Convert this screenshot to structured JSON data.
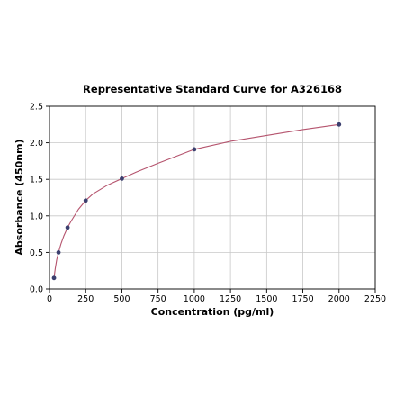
{
  "chart_data": {
    "type": "scatter",
    "title": "Representative Standard Curve for A326168",
    "xlabel": "Concentration (pg/ml)",
    "ylabel": "Absorbance (450nm)",
    "xlim": [
      0,
      2250
    ],
    "ylim": [
      0,
      2.5
    ],
    "x_ticks": [
      0,
      250,
      500,
      750,
      1000,
      1250,
      1500,
      1750,
      2000,
      2250
    ],
    "x_tick_labels": [
      "0",
      "250",
      "500",
      "750",
      "1000",
      "1250",
      "1500",
      "1750",
      "2000",
      "2250"
    ],
    "y_ticks": [
      0,
      0.5,
      1.0,
      1.5,
      2.0,
      2.5
    ],
    "y_tick_labels": [
      "0.0",
      "0.5",
      "1.0",
      "1.5",
      "2.0",
      "2.5"
    ],
    "grid": true,
    "points": {
      "x": [
        31.25,
        62.5,
        125,
        250,
        500,
        1000,
        2000
      ],
      "y": [
        0.15,
        0.5,
        0.84,
        1.21,
        1.51,
        1.91,
        2.25
      ]
    },
    "fit_curve": {
      "x": [
        31.25,
        40,
        50,
        62.5,
        80,
        100,
        125,
        150,
        200,
        250,
        300,
        400,
        500,
        600,
        750,
        1000,
        1250,
        1500,
        1750,
        2000
      ],
      "y": [
        0.15,
        0.28,
        0.4,
        0.5,
        0.62,
        0.73,
        0.84,
        0.93,
        1.09,
        1.21,
        1.3,
        1.42,
        1.51,
        1.6,
        1.72,
        1.91,
        2.02,
        2.1,
        2.18,
        2.25
      ]
    },
    "colors": {
      "curve": "#b5546e",
      "point": "#3b3f6e",
      "grid": "#c8c8c8",
      "axis": "#000000"
    }
  }
}
